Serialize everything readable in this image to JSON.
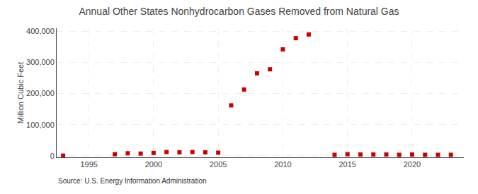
{
  "chart_data": {
    "type": "scatter",
    "title": "Annual Other States Nonhydrocarbon Gases Removed from Natural Gas",
    "y_label": "Million Cubic Feet",
    "source": "Source: U.S. Energy Information Administration",
    "x": [
      1993,
      1997,
      1998,
      1999,
      2000,
      2001,
      2002,
      2003,
      2004,
      2005,
      2006,
      2007,
      2008,
      2009,
      2010,
      2011,
      2012,
      2014,
      2015,
      2016,
      2017,
      2018,
      2019,
      2020,
      2021,
      2022,
      2023
    ],
    "values": [
      500,
      5000,
      8000,
      7000,
      9000,
      12000,
      11000,
      12000,
      11000,
      10000,
      162000,
      213000,
      265000,
      278000,
      342000,
      378000,
      390000,
      3000,
      5000,
      4000,
      4000,
      4000,
      3000,
      4000,
      3000,
      3000,
      3000
    ],
    "color": "#cc0000",
    "marker": "square",
    "xlim": [
      1992.5,
      2024
    ],
    "xticks": [
      1995,
      2000,
      2005,
      2010,
      2015,
      2020
    ],
    "ylim": [
      -5000,
      410000
    ],
    "yticks": [
      0,
      {
        "value": 100000,
        "label": "100,000"
      },
      {
        "value": 200000,
        "label": "200,000"
      },
      {
        "value": 300000,
        "label": "300,000"
      },
      {
        "value": 400000,
        "label": "400,000"
      }
    ],
    "grid": true
  }
}
